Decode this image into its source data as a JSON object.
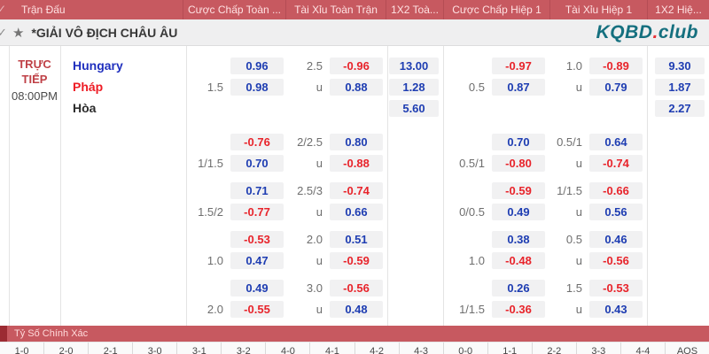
{
  "header": {
    "check_icon": "✓",
    "columns": [
      "Trận Đấu",
      "Cược Chấp Toàn ...",
      "Tài Xỉu Toàn Trận",
      "1X2 Toà...",
      "Cược Chấp Hiệp 1",
      "Tài Xỉu Hiệp 1",
      "1X2 Hiệ..."
    ]
  },
  "league": {
    "check_icon": "✓",
    "star_icon": "★",
    "title": "*GIẢI VÔ ĐỊCH CHÂU ÂU",
    "logo": {
      "kqbd": "KQBD",
      "dot": ".",
      "club": "club"
    }
  },
  "match": {
    "status": "TRỰC TIẾP",
    "time": "08:00PM",
    "home": "Hungary",
    "away": "Pháp",
    "draw": "Hòa"
  },
  "odds_blocks": [
    {
      "ft_hc": [
        {
          "line": "",
          "odds": "0.96"
        },
        {
          "line": "1.5",
          "odds": "0.98"
        }
      ],
      "ft_ou": [
        {
          "line": "2.5",
          "odds": "-0.96"
        },
        {
          "line": "u",
          "odds": "0.88"
        }
      ],
      "ft_1x2": [
        "13.00",
        "1.28",
        "5.60"
      ],
      "h1_hc": [
        {
          "line": "",
          "odds": "-0.97"
        },
        {
          "line": "0.5",
          "odds": "0.87"
        }
      ],
      "h1_ou": [
        {
          "line": "1.0",
          "odds": "-0.89"
        },
        {
          "line": "u",
          "odds": "0.79"
        }
      ],
      "h1_1x2": [
        "9.30",
        "1.87",
        "2.27"
      ]
    },
    {
      "ft_hc": [
        {
          "line": "",
          "odds": "-0.76"
        },
        {
          "line": "1/1.5",
          "odds": "0.70"
        }
      ],
      "ft_ou": [
        {
          "line": "2/2.5",
          "odds": "0.80"
        },
        {
          "line": "u",
          "odds": "-0.88"
        }
      ],
      "ft_1x2": [],
      "h1_hc": [
        {
          "line": "",
          "odds": "0.70"
        },
        {
          "line": "0.5/1",
          "odds": "-0.80"
        }
      ],
      "h1_ou": [
        {
          "line": "0.5/1",
          "odds": "0.64"
        },
        {
          "line": "u",
          "odds": "-0.74"
        }
      ],
      "h1_1x2": []
    },
    {
      "ft_hc": [
        {
          "line": "",
          "odds": "0.71"
        },
        {
          "line": "1.5/2",
          "odds": "-0.77"
        }
      ],
      "ft_ou": [
        {
          "line": "2.5/3",
          "odds": "-0.74"
        },
        {
          "line": "u",
          "odds": "0.66"
        }
      ],
      "ft_1x2": [],
      "h1_hc": [
        {
          "line": "",
          "odds": "-0.59"
        },
        {
          "line": "0/0.5",
          "odds": "0.49"
        }
      ],
      "h1_ou": [
        {
          "line": "1/1.5",
          "odds": "-0.66"
        },
        {
          "line": "u",
          "odds": "0.56"
        }
      ],
      "h1_1x2": []
    },
    {
      "ft_hc": [
        {
          "line": "",
          "odds": "-0.53"
        },
        {
          "line": "1.0",
          "odds": "0.47"
        }
      ],
      "ft_ou": [
        {
          "line": "2.0",
          "odds": "0.51"
        },
        {
          "line": "u",
          "odds": "-0.59"
        }
      ],
      "ft_1x2": [],
      "h1_hc": [
        {
          "line": "",
          "odds": "0.38"
        },
        {
          "line": "1.0",
          "odds": "-0.48"
        }
      ],
      "h1_ou": [
        {
          "line": "0.5",
          "odds": "0.46"
        },
        {
          "line": "u",
          "odds": "-0.56"
        }
      ],
      "h1_1x2": []
    },
    {
      "ft_hc": [
        {
          "line": "",
          "odds": "0.49"
        },
        {
          "line": "2.0",
          "odds": "-0.55"
        }
      ],
      "ft_ou": [
        {
          "line": "3.0",
          "odds": "-0.56"
        },
        {
          "line": "u",
          "odds": "0.48"
        }
      ],
      "ft_1x2": [],
      "h1_hc": [
        {
          "line": "",
          "odds": "0.26"
        },
        {
          "line": "1/1.5",
          "odds": "-0.36"
        }
      ],
      "h1_ou": [
        {
          "line": "1.5",
          "odds": "-0.53"
        },
        {
          "line": "u",
          "odds": "0.43"
        }
      ],
      "h1_1x2": []
    }
  ],
  "correct_score": {
    "title": "Tỷ Số Chính Xác",
    "scores": [
      "1-0",
      "2-0",
      "2-1",
      "3-0",
      "3-1",
      "3-2",
      "4-0",
      "4-1",
      "4-2",
      "4-3",
      "0-0",
      "1-1",
      "2-2",
      "3-3",
      "4-4",
      "AOS"
    ]
  },
  "colors": {
    "header_red": "#c75960",
    "header_red_dark": "#9c2b33",
    "odds_blue": "#1e3db2",
    "odds_red": "#e8242b",
    "logo_teal": "#15707f",
    "logo_dot_red": "#e63237",
    "home_blue": "#1f2fbe",
    "away_red": "#ee1c25"
  }
}
